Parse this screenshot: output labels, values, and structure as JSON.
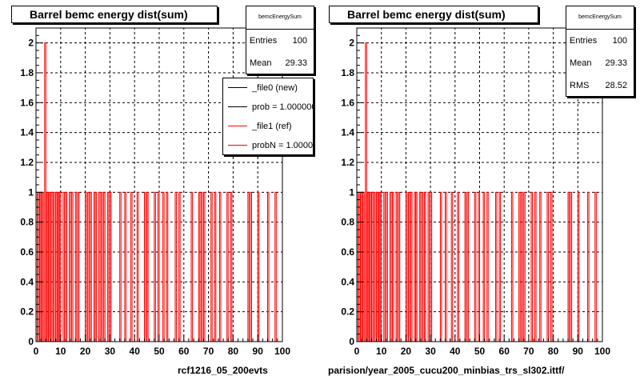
{
  "colors": {
    "histogram": "#ff0000",
    "reference": "#ff0000",
    "new": "#000000",
    "grid": "#000000"
  },
  "panels": [
    {
      "title": "Barrel bemc energy dist(sum)",
      "stats": {
        "name": "bemcEnergySum",
        "rows": [
          {
            "label": "Entries",
            "value": "100"
          },
          {
            "label": "Mean",
            "value": "29.33"
          }
        ]
      },
      "legend": [
        {
          "label": "_file0 (new)",
          "color": "#000000"
        },
        {
          "label": "prob = 1.000000",
          "color": "#000000"
        },
        {
          "label": "_file1 (ref)",
          "color": "#ff0000"
        },
        {
          "label": "probN = 1.000000",
          "color": "#ff0000"
        }
      ],
      "footer": "rcf1216_05_200evts"
    },
    {
      "title": "Barrel bemc energy dist(sum)",
      "stats": {
        "name": "bemcEnergySum",
        "rows": [
          {
            "label": "Entries",
            "value": "100"
          },
          {
            "label": "Mean",
            "value": "29.33"
          },
          {
            "label": "RMS",
            "value": "28.52"
          }
        ]
      },
      "footer": "parision/year_2005_cucu200_minbias_trs_sl302.ittf/"
    }
  ],
  "chart_data": [
    {
      "type": "bar",
      "title": "Barrel bemc energy dist(sum)",
      "xlim": [
        0,
        100
      ],
      "ylim": [
        0,
        2.1
      ],
      "xticks": [
        "0",
        "10",
        "20",
        "30",
        "40",
        "50",
        "60",
        "70",
        "80",
        "90",
        "100"
      ],
      "yticks": [
        "0",
        "0.2",
        "0.4",
        "0.6",
        "0.8",
        "1",
        "1.2",
        "1.4",
        "1.6",
        "1.8",
        "2"
      ],
      "grid": true,
      "bin_width": 0.5,
      "bins_value_2": [
        3.5
      ],
      "bins_value_1": [
        0.5,
        1,
        1.5,
        2,
        2.5,
        4,
        4.5,
        5,
        5.5,
        6,
        6.5,
        7,
        8,
        8.5,
        9,
        9.5,
        11,
        12,
        13.5,
        14.5,
        16,
        17,
        20,
        21,
        22,
        23.5,
        24,
        25.5,
        26.5,
        27.5,
        29,
        30,
        34,
        36,
        38.5,
        41,
        44,
        45,
        48,
        49.5,
        51.5,
        53,
        56.5,
        58,
        63,
        66,
        67,
        68,
        71,
        72.5,
        74.5,
        77.5,
        79,
        86,
        87,
        90,
        94,
        97
      ]
    },
    {
      "type": "bar",
      "title": "Barrel bemc energy dist(sum)",
      "xlim": [
        0,
        100
      ],
      "ylim": [
        0,
        2.1
      ],
      "xticks": [
        "0",
        "10",
        "20",
        "30",
        "40",
        "50",
        "60",
        "70",
        "80",
        "90",
        "100"
      ],
      "yticks": [
        "0",
        "0.2",
        "0.4",
        "0.6",
        "0.8",
        "1",
        "1.2",
        "1.4",
        "1.6",
        "1.8",
        "2"
      ],
      "grid": true,
      "bin_width": 0.5,
      "bins_value_2": [
        3.5
      ],
      "bins_value_1": [
        0.5,
        1,
        1.5,
        2,
        2.5,
        4,
        4.5,
        5,
        5.5,
        6,
        6.5,
        7,
        8,
        8.5,
        9,
        9.5,
        11,
        12,
        13.5,
        14.5,
        16,
        17,
        20,
        21,
        22,
        23.5,
        24,
        25.5,
        26.5,
        27.5,
        29,
        30,
        34,
        36,
        38.5,
        41,
        44,
        45,
        48,
        49.5,
        51.5,
        53,
        56.5,
        58,
        63,
        66,
        67,
        68,
        71,
        72.5,
        74.5,
        77.5,
        79,
        86,
        87,
        90,
        94,
        97
      ]
    }
  ]
}
